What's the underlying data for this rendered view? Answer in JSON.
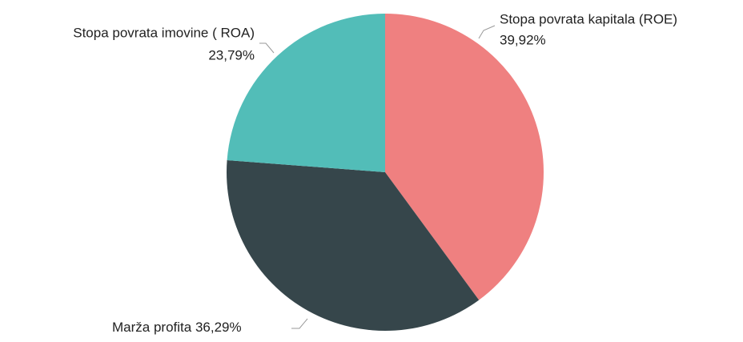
{
  "chart_data": {
    "type": "pie",
    "categories": [
      "Stopa povrata kapitala (ROE)",
      "Marža profita",
      "Stopa povrata imovine ( ROA)"
    ],
    "values": [
      39.92,
      36.29,
      23.79
    ],
    "value_labels": [
      "39,92%",
      "36,29%",
      "23,79%"
    ],
    "colors": [
      "#ef8080",
      "#36464b",
      "#52bdb8"
    ]
  }
}
